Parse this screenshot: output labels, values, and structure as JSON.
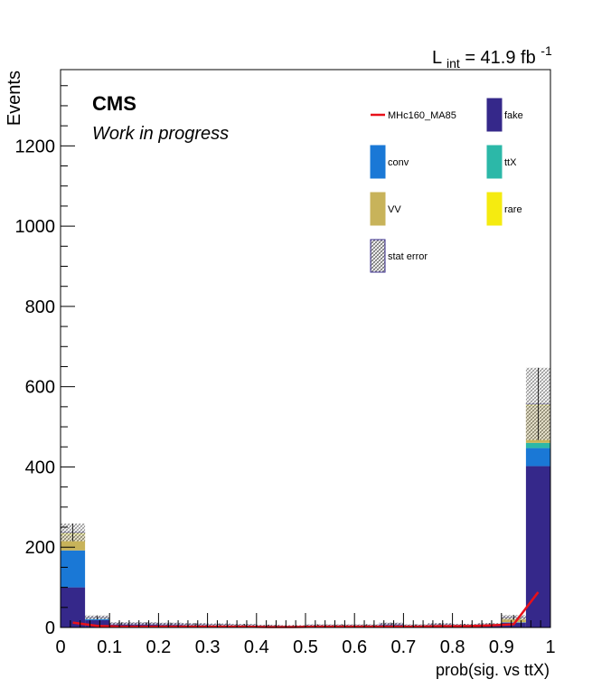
{
  "chart_data": {
    "type": "bar",
    "stacked": true,
    "title": "",
    "xlabel": "prob(sig. vs ttX)",
    "ylabel": "Events",
    "xlim": [
      0,
      1
    ],
    "ylim": [
      0,
      1390
    ],
    "x_ticks": [
      "0",
      "0.1",
      "0.2",
      "0.3",
      "0.4",
      "0.5",
      "0.6",
      "0.7",
      "0.8",
      "0.9",
      "1"
    ],
    "y_ticks": [
      "0",
      "200",
      "400",
      "600",
      "800",
      "1000",
      "1200"
    ],
    "bin_edges": [
      0,
      0.05,
      0.1,
      0.15,
      0.2,
      0.25,
      0.3,
      0.35,
      0.4,
      0.45,
      0.5,
      0.55,
      0.6,
      0.65,
      0.7,
      0.75,
      0.8,
      0.85,
      0.9,
      0.95,
      1.0
    ],
    "series": [
      {
        "name": "fake",
        "color": "#35288a",
        "values": [
          100,
          18,
          10,
          10,
          9,
          8,
          7,
          6,
          4,
          3,
          5,
          5,
          5,
          9,
          5,
          8,
          6,
          8,
          12,
          402
        ]
      },
      {
        "name": "conv",
        "color": "#1a78d6",
        "values": [
          92,
          4,
          0,
          0,
          0,
          0,
          0,
          0,
          0,
          0,
          0,
          0,
          0,
          0,
          0,
          0,
          0,
          0,
          1,
          45
        ]
      },
      {
        "name": "ttX",
        "color": "#2cb8a8",
        "values": [
          0,
          1,
          0,
          0,
          0,
          0,
          0,
          0,
          0,
          0,
          0,
          0,
          0,
          0,
          0,
          0,
          0,
          0,
          0,
          13
        ]
      },
      {
        "name": "VV",
        "color": "#c8b35a",
        "values": [
          38,
          2,
          0,
          0,
          0,
          0,
          0,
          0,
          0,
          0,
          0,
          0,
          0,
          0,
          0,
          0,
          0,
          0,
          12,
          92
        ]
      },
      {
        "name": "rare",
        "color": "#f5eb10",
        "values": [
          7,
          0,
          0,
          0,
          0,
          0,
          0,
          0,
          0,
          0,
          0,
          0,
          0,
          0,
          0,
          0,
          0,
          0,
          0,
          5
        ]
      }
    ],
    "stat_error": {
      "name": "stat error",
      "values": [
        22,
        5,
        3,
        3,
        3,
        3,
        3,
        3,
        3,
        3,
        3,
        3,
        3,
        3,
        3,
        3,
        3,
        3,
        6,
        90
      ]
    },
    "signal": {
      "name": "MHc160_MA85",
      "color": "#e8101a",
      "x": [
        0.025,
        0.075,
        0.125,
        0.175,
        0.225,
        0.275,
        0.325,
        0.375,
        0.425,
        0.475,
        0.525,
        0.575,
        0.625,
        0.675,
        0.725,
        0.775,
        0.825,
        0.875,
        0.925,
        0.975
      ],
      "values": [
        12,
        4,
        2,
        2,
        2,
        2,
        2,
        2,
        1,
        1,
        2,
        2,
        2,
        2,
        2,
        3,
        3,
        5,
        8,
        88
      ]
    },
    "annotations": {
      "cms": "CMS",
      "work_in_progress": "Work in progress",
      "lumi_L": "L",
      "lumi_sub": "int",
      "lumi_value": " = 41.9 fb",
      "lumi_sup": "-1"
    },
    "legend": {
      "position": "top-right",
      "entries": [
        {
          "label": "MHc160_MA85",
          "kind": "line",
          "color": "#e8101a"
        },
        {
          "label": "fake",
          "kind": "box",
          "color": "#35288a"
        },
        {
          "label": "conv",
          "kind": "box",
          "color": "#1a78d6"
        },
        {
          "label": "ttX",
          "kind": "box",
          "color": "#2cb8a8"
        },
        {
          "label": "VV",
          "kind": "box",
          "color": "#c8b35a"
        },
        {
          "label": "rare",
          "kind": "box",
          "color": "#f5eb10"
        },
        {
          "label": "stat error",
          "kind": "hatch",
          "color": "#35288a"
        }
      ]
    }
  }
}
